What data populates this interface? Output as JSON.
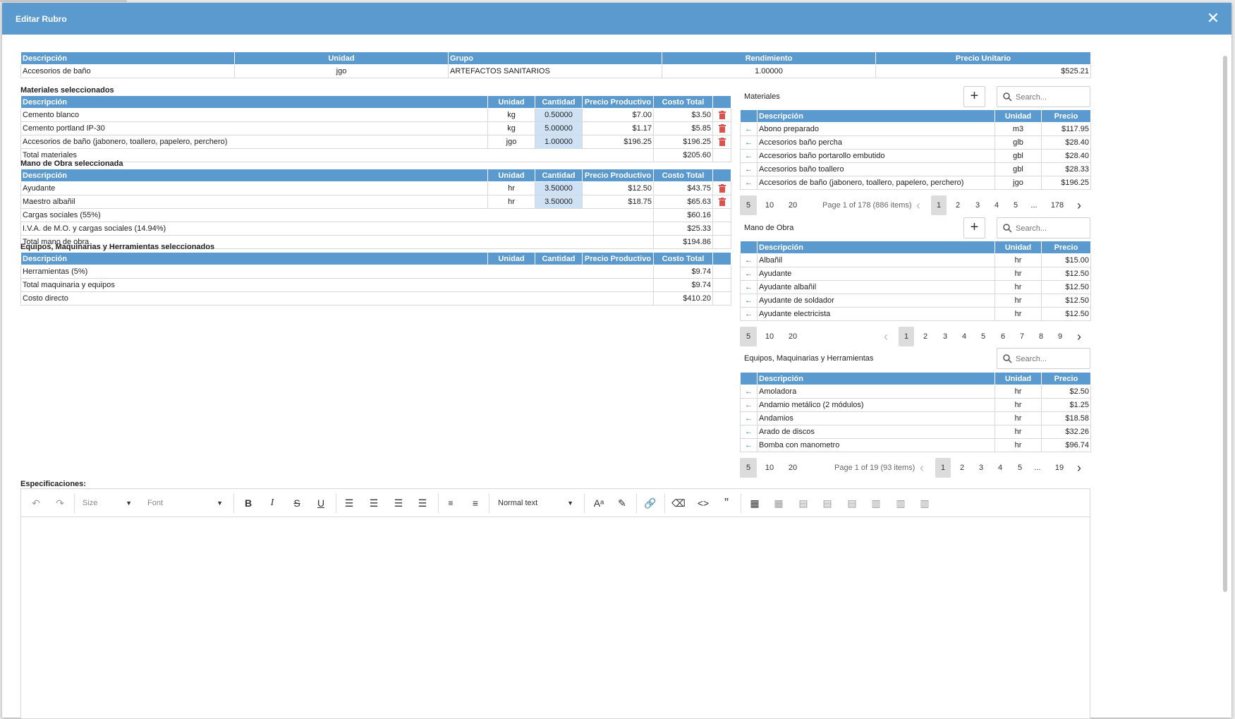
{
  "dialog": {
    "title": "Editar Rubro"
  },
  "rubro": {
    "headers": [
      "Descripción",
      "Unidad",
      "Grupo",
      "Rendimiento",
      "Precio Unitario"
    ],
    "row": [
      "Accesorios de baño",
      "jgo",
      "ARTEFACTOS SANITARIOS",
      "1.00000",
      "$525.21"
    ]
  },
  "materiales_sel": {
    "title": "Materiales seleccionados",
    "headers": [
      "Descripción",
      "Unidad",
      "Cantidad",
      "Precio Productivo",
      "Costo Total"
    ],
    "rows": [
      [
        "Cemento blanco",
        "kg",
        "0.50000",
        "$7.00",
        "$3.50"
      ],
      [
        "Cemento portland IP-30",
        "kg",
        "5.00000",
        "$1.17",
        "$5.85"
      ],
      [
        "Accesorios de baño (jabonero, toallero, papelero, perchero)",
        "jgo",
        "1.00000",
        "$196.25",
        "$196.25"
      ]
    ],
    "total_label": "Total materiales",
    "total_value": "$205.60"
  },
  "mano_obra_sel": {
    "title": "Mano de Obra seleccionada",
    "headers": [
      "Descripción",
      "Unidad",
      "Cantidad",
      "Precio Productivo",
      "Costo Total"
    ],
    "rows": [
      [
        "Ayudante",
        "hr",
        "3.50000",
        "$12.50",
        "$43.75"
      ],
      [
        "Maestro albañil",
        "hr",
        "3.50000",
        "$18.75",
        "$65.63"
      ]
    ],
    "summary": [
      [
        "Cargas sociales (55%)",
        "$60.16"
      ],
      [
        "I.V.A. de M.O. y cargas sociales (14.94%)",
        "$25.33"
      ],
      [
        "Total mano de obra",
        "$194.86"
      ]
    ]
  },
  "equipos_sel": {
    "title": "Equipos, Maquinarias y Herramientas seleccionados",
    "headers": [
      "Descripción",
      "Unidad",
      "Cantidad",
      "Precio Productivo",
      "Costo Total"
    ],
    "summary": [
      [
        "Herramientas (5%)",
        "$9.74"
      ],
      [
        "Total maquinaria y equipos",
        "$9.74"
      ],
      [
        "Costo directo",
        "$410.20"
      ]
    ]
  },
  "panel_materiales": {
    "title": "Materiales",
    "search_placeholder": "Search...",
    "headers": [
      "Descripción",
      "Unidad",
      "Precio"
    ],
    "rows": [
      [
        "Abono preparado",
        "m3",
        "$117.95"
      ],
      [
        "Accesorios baño percha",
        "glb",
        "$28.40"
      ],
      [
        "Accesorios baño portarollo embutido",
        "gbl",
        "$28.40"
      ],
      [
        "Accesorios baño toallero",
        "gbl",
        "$28.33"
      ],
      [
        "Accesorios de baño (jabonero, toallero, papelero, perchero)",
        "jgo",
        "$196.25"
      ]
    ],
    "page_sizes": [
      "5",
      "10",
      "20"
    ],
    "page_info": "Page 1 of 178 (886 items)",
    "pages": [
      "1",
      "2",
      "3",
      "4",
      "5",
      "...",
      "178"
    ]
  },
  "panel_mano_obra": {
    "title": "Mano de Obra",
    "search_placeholder": "Search...",
    "headers": [
      "Descripción",
      "Unidad",
      "Precio"
    ],
    "rows": [
      [
        "Albañil",
        "hr",
        "$15.00"
      ],
      [
        "Ayudante",
        "hr",
        "$12.50"
      ],
      [
        "Ayudante albañil",
        "hr",
        "$12.50"
      ],
      [
        "Ayudante de soldador",
        "hr",
        "$12.50"
      ],
      [
        "Ayudante electricista",
        "hr",
        "$12.50"
      ]
    ],
    "page_sizes": [
      "5",
      "10",
      "20"
    ],
    "pages": [
      "1",
      "2",
      "3",
      "4",
      "5",
      "6",
      "7",
      "8",
      "9"
    ]
  },
  "panel_equipos": {
    "title": "Equipos, Maquinarias y Herramientas",
    "search_placeholder": "Search...",
    "headers": [
      "Descripción",
      "Unidad",
      "Precio"
    ],
    "rows": [
      [
        "Amoladora",
        "hr",
        "$2.50"
      ],
      [
        "Andamio metálico (2 módulos)",
        "hr",
        "$1.25"
      ],
      [
        "Andamios",
        "hr",
        "$18.58"
      ],
      [
        "Arado de discos",
        "hr",
        "$32.26"
      ],
      [
        "Bomba con manometro",
        "hr",
        "$96.74"
      ]
    ],
    "page_sizes": [
      "5",
      "10",
      "20"
    ],
    "page_info": "Page 1 of 19 (93 items)",
    "pages": [
      "1",
      "2",
      "3",
      "4",
      "5",
      "...",
      "19"
    ]
  },
  "editor": {
    "label": "Especificaciones:",
    "size_placeholder": "Size",
    "font_placeholder": "Font",
    "block_format": "Normal text"
  },
  "colors": {
    "header_blue": "#5a9ace",
    "qty_bg": "#cfe2f5",
    "trash_red": "#d9534f",
    "arrow_blue": "#3a78b5"
  }
}
